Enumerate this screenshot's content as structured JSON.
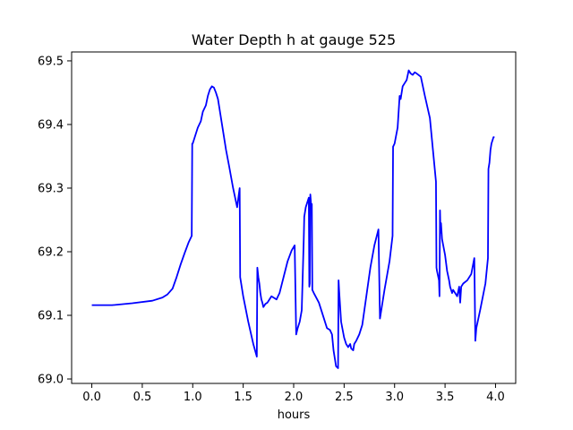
{
  "chart_data": {
    "type": "line",
    "title": "Water Depth h at gauge 525",
    "xlabel": "hours",
    "ylabel": "",
    "xlim": [
      -0.2,
      4.2
    ],
    "ylim": [
      68.993,
      69.514
    ],
    "xticks": [
      "0.0",
      "0.5",
      "1.0",
      "1.5",
      "2.0",
      "2.5",
      "3.0",
      "3.5",
      "4.0"
    ],
    "yticks": [
      "69.0",
      "69.1",
      "69.2",
      "69.3",
      "69.4",
      "69.5"
    ],
    "grid": false,
    "legend": "none",
    "series": [
      {
        "color": "#0000ff",
        "x": [
          0.0,
          0.2,
          0.4,
          0.6,
          0.7,
          0.75,
          0.8,
          0.84,
          0.88,
          0.92,
          0.96,
          0.99,
          0.995,
          1.0,
          1.02,
          1.05,
          1.08,
          1.1,
          1.13,
          1.15,
          1.17,
          1.19,
          1.21,
          1.23,
          1.25,
          1.27,
          1.3,
          1.33,
          1.36,
          1.4,
          1.44,
          1.465,
          1.47,
          1.5,
          1.55,
          1.6,
          1.635,
          1.64,
          1.65,
          1.66,
          1.67,
          1.68,
          1.69,
          1.7,
          1.72,
          1.74,
          1.76,
          1.78,
          1.8,
          1.83,
          1.86,
          1.9,
          1.94,
          1.98,
          2.01,
          2.025,
          2.04,
          2.06,
          2.08,
          2.1,
          2.105,
          2.12,
          2.14,
          2.15,
          2.155,
          2.16,
          2.165,
          2.17,
          2.175,
          2.18,
          2.185,
          2.2,
          2.25,
          2.3,
          2.33,
          2.36,
          2.38,
          2.395,
          2.42,
          2.44,
          2.445,
          2.45,
          2.47,
          2.5,
          2.52,
          2.54,
          2.56,
          2.57,
          2.59,
          2.6,
          2.62,
          2.65,
          2.68,
          2.72,
          2.76,
          2.8,
          2.84,
          2.855,
          2.86,
          2.9,
          2.95,
          2.98,
          2.985,
          3.0,
          3.03,
          3.04,
          3.05,
          3.06,
          3.08,
          3.1,
          3.12,
          3.14,
          3.16,
          3.18,
          3.2,
          3.22,
          3.26,
          3.3,
          3.35,
          3.38,
          3.41,
          3.415,
          3.42,
          3.44,
          3.445,
          3.45,
          3.455,
          3.46,
          3.47,
          3.5,
          3.52,
          3.54,
          3.55,
          3.56,
          3.57,
          3.58,
          3.6,
          3.62,
          3.64,
          3.65,
          3.66,
          3.68,
          3.72,
          3.76,
          3.79,
          3.8,
          3.81,
          3.85,
          3.9,
          3.925,
          3.93,
          3.94,
          3.95,
          3.96,
          3.97,
          3.98,
          3.99
        ],
        "y": [
          69.116,
          69.116,
          69.119,
          69.123,
          69.128,
          69.133,
          69.142,
          69.16,
          69.18,
          69.198,
          69.215,
          69.225,
          69.37,
          69.37,
          69.38,
          69.395,
          69.405,
          69.42,
          69.43,
          69.445,
          69.455,
          69.46,
          69.458,
          69.45,
          69.44,
          69.42,
          69.39,
          69.36,
          69.335,
          69.3,
          69.27,
          69.3,
          69.16,
          69.13,
          69.09,
          69.055,
          69.035,
          69.175,
          69.16,
          69.15,
          69.135,
          69.125,
          69.12,
          69.113,
          69.118,
          69.12,
          69.125,
          69.13,
          69.128,
          69.125,
          69.135,
          69.16,
          69.185,
          69.202,
          69.21,
          69.07,
          69.08,
          69.09,
          69.108,
          69.22,
          69.255,
          69.27,
          69.28,
          69.285,
          69.145,
          69.15,
          69.29,
          69.28,
          69.27,
          69.275,
          69.14,
          69.135,
          69.12,
          69.095,
          69.08,
          69.077,
          69.07,
          69.045,
          69.02,
          69.017,
          69.155,
          69.14,
          69.09,
          69.065,
          69.055,
          69.05,
          69.055,
          69.048,
          69.045,
          69.055,
          69.06,
          69.07,
          69.085,
          69.13,
          69.175,
          69.21,
          69.235,
          69.095,
          69.1,
          69.14,
          69.185,
          69.225,
          69.365,
          69.37,
          69.395,
          69.42,
          69.445,
          69.44,
          69.46,
          69.465,
          69.47,
          69.485,
          69.48,
          69.478,
          69.482,
          69.48,
          69.475,
          69.445,
          69.41,
          69.36,
          69.31,
          69.175,
          69.17,
          69.155,
          69.13,
          69.265,
          69.23,
          69.245,
          69.22,
          69.195,
          69.17,
          69.155,
          69.145,
          69.14,
          69.135,
          69.14,
          69.135,
          69.13,
          69.145,
          69.12,
          69.145,
          69.15,
          69.155,
          69.165,
          69.19,
          69.06,
          69.08,
          69.11,
          69.15,
          69.19,
          69.33,
          69.34,
          69.36,
          69.37,
          69.375,
          69.38,
          69.38
        ]
      }
    ]
  }
}
